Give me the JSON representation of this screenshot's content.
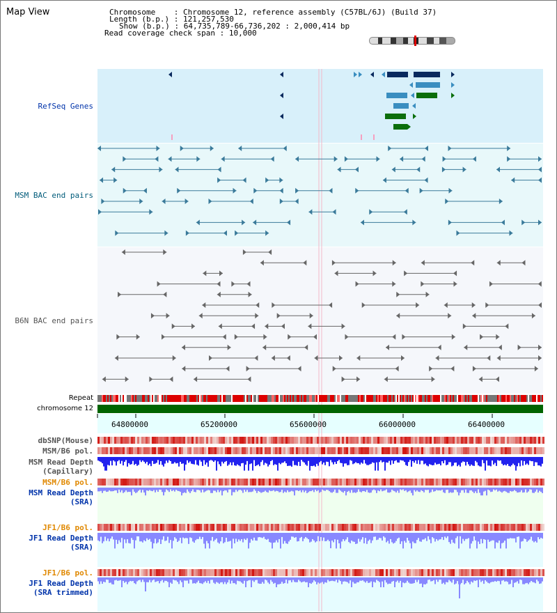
{
  "app": {
    "title": "Map View"
  },
  "header": {
    "chromosome_label": "Chromosome",
    "chromosome_value": "Chromosome 12, reference assembly (C57BL/6J) (Build 37)",
    "length_label": "Length (b.p.)",
    "length_value": "121,257,530",
    "show_label": "Show (b.p.)",
    "show_value": "64,735,789-66,736,202 : 2,000,414 bp",
    "coverage_label": "Read coverage check span",
    "coverage_value": "10,000",
    "sep": ":"
  },
  "tracks": {
    "refseq": "RefSeq Genes",
    "msm_bac": "MSM BAC end pairs",
    "b6n_bac": "B6N BAC end pairs",
    "repeat": "Repeat",
    "chromosome": "chromosome 12",
    "dbsnp": "dbSNP(Mouse)",
    "msm_b6_pol_1": "MSM/B6 pol.",
    "msm_read_depth_cap_1": "MSM Read Depth",
    "msm_read_depth_cap_2": "(Capillary)",
    "msm_b6_pol_2": "MSM/B6 pol.",
    "msm_read_depth_sra_1": "MSM Read Depth",
    "msm_read_depth_sra_2": "(SRA)",
    "jf1_b6_pol_1": "JF1/B6 pol.",
    "jf1_read_depth_sra_1": "JF1 Read Depth",
    "jf1_read_depth_sra_2": "(SRA)",
    "jf1_b6_pol_2": "JF1/B6 pol.",
    "jf1_read_depth_trim_1": "JF1 Read Depth",
    "jf1_read_depth_trim_2": "(SRA trimmed)"
  },
  "axis": {
    "ticks": [
      "64800000",
      "65200000",
      "65600000",
      "66000000",
      "66400000"
    ]
  },
  "colors": {
    "refseq_bg": "#d8f0fa",
    "msm_bg": "#e8f8fa",
    "b6n_bg": "#f5f7fb",
    "gene_dark": "#0a2a5e",
    "gene_light": "#3a8ec0",
    "gene_green": "#0b6e0b",
    "chromosome_bar": "#006400",
    "label_blue": "#0033aa",
    "label_orange": "#e08800",
    "label_teal": "#005b7a",
    "depth_blue": "#2222ee",
    "depth_light": "#8888ff"
  }
}
